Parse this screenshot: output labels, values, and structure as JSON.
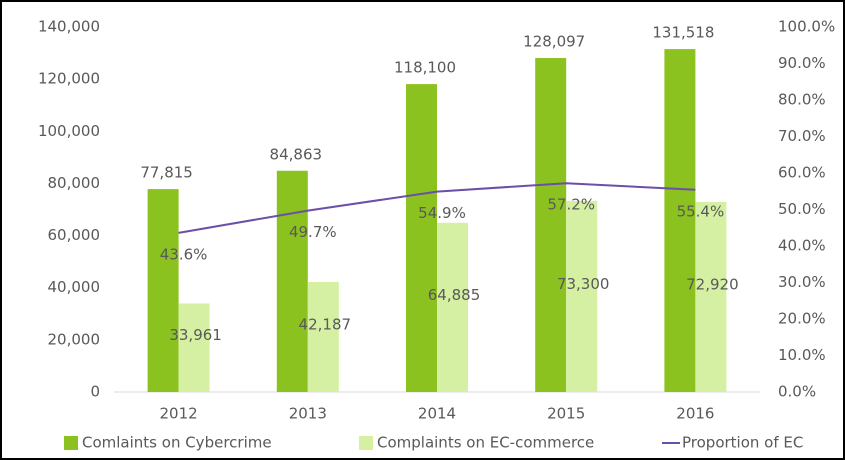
{
  "chart_data": {
    "type": "bar-line",
    "categories": [
      "2012",
      "2013",
      "2014",
      "2015",
      "2016"
    ],
    "series": [
      {
        "name": "Comlaints on Cybercrime",
        "type": "bar",
        "color": "#8cc21f",
        "values": [
          77815,
          84863,
          118100,
          128097,
          131518
        ],
        "value_labels": [
          "77,815",
          "84,863",
          "118,100",
          "128,097",
          "131,518"
        ]
      },
      {
        "name": "Complaints on EC-commerce",
        "type": "bar",
        "color": "#d5f0a2",
        "values": [
          33961,
          42187,
          64885,
          73300,
          72920
        ],
        "value_labels": [
          "33,961",
          "42,187",
          "64,885",
          "73,300",
          "72,920"
        ]
      },
      {
        "name": "Proportion of EC",
        "type": "line",
        "axis": "y2",
        "color": "#6b4fa8",
        "values": [
          43.6,
          49.7,
          54.9,
          57.2,
          55.4
        ],
        "value_labels": [
          "43.6%",
          "49.7%",
          "54.9%",
          "57.2%",
          "55.4%"
        ]
      }
    ],
    "ylim": [
      0,
      140000
    ],
    "yticks": [
      0,
      {
        "value": 20000,
        "label": "20,000"
      },
      {
        "value": 40000,
        "label": "40,000"
      },
      {
        "value": 60000,
        "label": "60,000"
      },
      {
        "value": 80000,
        "label": "80,000"
      },
      {
        "value": 100000,
        "label": "100,000"
      },
      {
        "value": 120000,
        "label": "120,000"
      },
      {
        "value": 140000,
        "label": "140,000"
      }
    ],
    "y2lim": [
      0,
      100
    ],
    "y2ticks": [
      {
        "value": 0,
        "label": "0.0%"
      },
      {
        "value": 10,
        "label": "10.0%"
      },
      {
        "value": 20,
        "label": "20.0%"
      },
      {
        "value": 30,
        "label": "30.0%"
      },
      {
        "value": 40,
        "label": "40.0%"
      },
      {
        "value": 50,
        "label": "50.0%"
      },
      {
        "value": 60,
        "label": "60.0%"
      },
      {
        "value": 70,
        "label": "70.0%"
      },
      {
        "value": 80,
        "label": "80.0%"
      },
      {
        "value": 90,
        "label": "90.0%"
      },
      {
        "value": 100,
        "label": "100.0%"
      }
    ],
    "grid": false,
    "legend": "bottom"
  }
}
